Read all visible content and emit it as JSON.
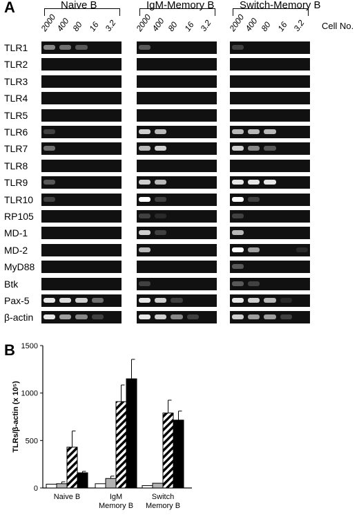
{
  "panel_a": {
    "letter": "A",
    "groups": [
      "Naive B",
      "IgM-Memory B",
      "Switch-Memory B"
    ],
    "cell_no_label": "Cell No.",
    "dilutions": [
      "2000",
      "400",
      "80",
      "16",
      "3.2"
    ],
    "genes": [
      "TLR1",
      "TLR2",
      "TLR3",
      "TLR4",
      "TLR5",
      "TLR6",
      "TLR7",
      "TLR8",
      "TLR9",
      "TLR10",
      "RP105",
      "MD-1",
      "MD-2",
      "MyD88",
      "Btk",
      "Pax-5",
      "β-actin"
    ],
    "band_intensity": {
      "Naive B": [
        [
          0.5,
          0.4,
          0.3,
          0,
          0
        ],
        [
          0,
          0,
          0,
          0,
          0
        ],
        [
          0,
          0,
          0,
          0,
          0
        ],
        [
          0,
          0,
          0,
          0,
          0
        ],
        [
          0,
          0,
          0,
          0,
          0
        ],
        [
          0.2,
          0,
          0,
          0,
          0
        ],
        [
          0.4,
          0,
          0,
          0,
          0
        ],
        [
          0,
          0,
          0,
          0,
          0
        ],
        [
          0.3,
          0,
          0,
          0,
          0
        ],
        [
          0.2,
          0,
          0,
          0,
          0
        ],
        [
          0,
          0,
          0,
          0,
          0
        ],
        [
          0,
          0,
          0,
          0,
          0
        ],
        [
          0,
          0,
          0,
          0,
          0
        ],
        [
          0,
          0,
          0,
          0,
          0
        ],
        [
          0,
          0,
          0,
          0,
          0
        ],
        [
          0.9,
          0.85,
          0.8,
          0.4,
          0
        ],
        [
          0.9,
          0.6,
          0.5,
          0.2,
          0
        ]
      ],
      "IgM-Memory B": [
        [
          0.3,
          0,
          0,
          0,
          0
        ],
        [
          0,
          0,
          0,
          0,
          0
        ],
        [
          0,
          0,
          0,
          0,
          0
        ],
        [
          0,
          0,
          0,
          0,
          0
        ],
        [
          0,
          0,
          0,
          0,
          0
        ],
        [
          0.8,
          0.7,
          0,
          0,
          0
        ],
        [
          0.7,
          0.8,
          0,
          0,
          0
        ],
        [
          0,
          0,
          0,
          0,
          0
        ],
        [
          0.8,
          0.7,
          0,
          0,
          0
        ],
        [
          1.0,
          0.2,
          0,
          0,
          0
        ],
        [
          0.2,
          0.1,
          0,
          0,
          0
        ],
        [
          0.8,
          0.2,
          0,
          0,
          0
        ],
        [
          0.7,
          0,
          0,
          0,
          0
        ],
        [
          0,
          0,
          0,
          0,
          0
        ],
        [
          0.2,
          0,
          0,
          0,
          0
        ],
        [
          0.9,
          0.8,
          0.2,
          0,
          0
        ],
        [
          0.9,
          0.8,
          0.5,
          0.2,
          0
        ]
      ],
      "Switch-Memory B": [
        [
          0.2,
          0,
          0,
          0,
          0
        ],
        [
          0,
          0,
          0,
          0,
          0
        ],
        [
          0,
          0,
          0,
          0,
          0
        ],
        [
          0,
          0,
          0,
          0,
          0
        ],
        [
          0,
          0,
          0,
          0,
          0
        ],
        [
          0.7,
          0.7,
          0.7,
          0,
          0
        ],
        [
          0.8,
          0.5,
          0.3,
          0,
          0
        ],
        [
          0,
          0,
          0,
          0,
          0
        ],
        [
          0.9,
          0.9,
          0.9,
          0,
          0
        ],
        [
          1.0,
          0.2,
          0,
          0,
          0
        ],
        [
          0.2,
          0,
          0,
          0,
          0
        ],
        [
          0.7,
          0,
          0,
          0,
          0
        ],
        [
          1.0,
          0.6,
          0,
          0,
          0.1
        ],
        [
          0.3,
          0,
          0,
          0,
          0
        ],
        [
          0.3,
          0.2,
          0,
          0,
          0
        ],
        [
          0.9,
          0.8,
          0.7,
          0.1,
          0
        ],
        [
          0.8,
          0.6,
          0.6,
          0.2,
          0
        ]
      ]
    }
  },
  "panel_b": {
    "letter": "B"
  },
  "chart_data": {
    "type": "bar",
    "ylabel": "TLRs/β-actin (x 10⁵)",
    "ylim": [
      0,
      1500
    ],
    "yticks": [
      "0",
      "500",
      "1000",
      "1500"
    ],
    "categories": [
      "Naive B",
      "IgM Memory B",
      "Switch Memory B"
    ],
    "category_lines": [
      [
        "Naive B"
      ],
      [
        "IgM",
        "Memory B"
      ],
      [
        "Switch",
        "Memory B"
      ]
    ],
    "series": [
      {
        "fill": "white",
        "values": [
          40,
          45,
          25
        ],
        "errors": [
          0,
          0,
          0
        ]
      },
      {
        "fill": "gray",
        "values": [
          45,
          100,
          50
        ],
        "errors": [
          20,
          25,
          0
        ]
      },
      {
        "fill": "hatched",
        "values": [
          430,
          910,
          790
        ],
        "errors": [
          170,
          175,
          135
        ]
      },
      {
        "fill": "black",
        "values": [
          160,
          1150,
          715
        ],
        "errors": [
          15,
          205,
          95
        ]
      }
    ],
    "grid": false,
    "legend": "none"
  }
}
